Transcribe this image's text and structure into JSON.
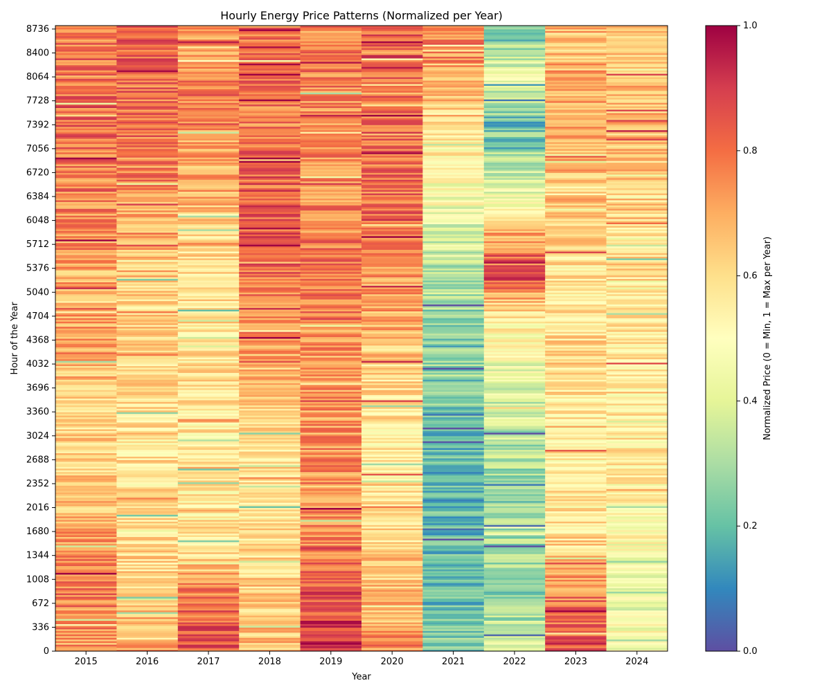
{
  "chart_data": {
    "type": "heatmap",
    "title": "Hourly Energy Price Patterns (Normalized per Year)",
    "xlabel": "Year",
    "ylabel": "Hour of the Year",
    "x_categories": [
      "2015",
      "2016",
      "2017",
      "2018",
      "2019",
      "2020",
      "2021",
      "2022",
      "2023",
      "2024"
    ],
    "ylim": [
      0,
      8784
    ],
    "y_ticks": [
      0,
      336,
      672,
      1008,
      1344,
      1680,
      2016,
      2352,
      2688,
      3024,
      3360,
      3696,
      4032,
      4368,
      4704,
      5040,
      5376,
      5712,
      6048,
      6384,
      6720,
      7056,
      7392,
      7728,
      8064,
      8400,
      8736
    ],
    "y_tick_labels": [
      "0",
      "336",
      "672",
      "1008",
      "1344",
      "1680",
      "2016",
      "2352",
      "2688",
      "3024",
      "3360",
      "3696",
      "4032",
      "4368",
      "4704",
      "5040",
      "5376",
      "5712",
      "6048",
      "6384",
      "6720",
      "7056",
      "7392",
      "7728",
      "8064",
      "8400",
      "8736"
    ],
    "colormap": "Spectral_r",
    "colorbar": {
      "label": "Normalized Price (0 = Min, 1 = Max per Year)",
      "range": [
        0,
        1
      ],
      "ticks": [
        0.0,
        0.2,
        0.4,
        0.6,
        0.8,
        1.0
      ],
      "tick_labels": [
        "0.0",
        "0.2",
        "0.4",
        "0.6",
        "0.8",
        "1.0"
      ]
    },
    "approx_values": {
      "hour_bands": [
        0,
        672,
        1344,
        2016,
        2688,
        3360,
        4032,
        4704,
        5376,
        6048,
        6720,
        7392,
        8064,
        8736
      ],
      "rows": [
        {
          "year": "2015",
          "values": [
            0.72,
            0.78,
            0.74,
            0.66,
            0.62,
            0.63,
            0.66,
            0.72,
            0.7,
            0.74,
            0.78,
            0.82,
            0.8,
            0.78
          ]
        },
        {
          "year": "2016",
          "values": [
            0.75,
            0.64,
            0.6,
            0.58,
            0.58,
            0.58,
            0.6,
            0.62,
            0.65,
            0.7,
            0.76,
            0.8,
            0.8,
            0.83
          ]
        },
        {
          "year": "2017",
          "values": [
            0.85,
            0.82,
            0.6,
            0.55,
            0.56,
            0.56,
            0.58,
            0.58,
            0.58,
            0.64,
            0.7,
            0.72,
            0.76,
            0.72
          ]
        },
        {
          "year": "2018",
          "values": [
            0.66,
            0.64,
            0.6,
            0.58,
            0.6,
            0.62,
            0.68,
            0.76,
            0.82,
            0.84,
            0.82,
            0.78,
            0.82,
            0.8
          ]
        },
        {
          "year": "2019",
          "values": [
            0.92,
            0.85,
            0.78,
            0.74,
            0.75,
            0.72,
            0.72,
            0.76,
            0.78,
            0.77,
            0.74,
            0.74,
            0.76,
            0.76
          ]
        },
        {
          "year": "2020",
          "values": [
            0.75,
            0.66,
            0.62,
            0.56,
            0.55,
            0.58,
            0.62,
            0.7,
            0.72,
            0.82,
            0.8,
            0.8,
            0.82,
            0.84
          ]
        },
        {
          "year": "2021",
          "values": [
            0.25,
            0.22,
            0.18,
            0.18,
            0.2,
            0.22,
            0.26,
            0.28,
            0.34,
            0.42,
            0.5,
            0.58,
            0.7,
            0.8
          ]
        },
        {
          "year": "2022",
          "values": [
            0.45,
            0.25,
            0.3,
            0.28,
            0.3,
            0.35,
            0.45,
            0.55,
            0.92,
            0.55,
            0.35,
            0.2,
            0.45,
            0.2
          ]
        },
        {
          "year": "2023",
          "values": [
            0.86,
            0.8,
            0.62,
            0.56,
            0.56,
            0.56,
            0.6,
            0.58,
            0.58,
            0.62,
            0.66,
            0.68,
            0.7,
            0.62
          ]
        },
        {
          "year": "2024",
          "values": [
            0.55,
            0.42,
            0.48,
            0.52,
            0.55,
            0.55,
            0.56,
            0.56,
            0.6,
            0.62,
            0.64,
            0.66,
            0.66,
            0.62
          ]
        }
      ]
    }
  }
}
